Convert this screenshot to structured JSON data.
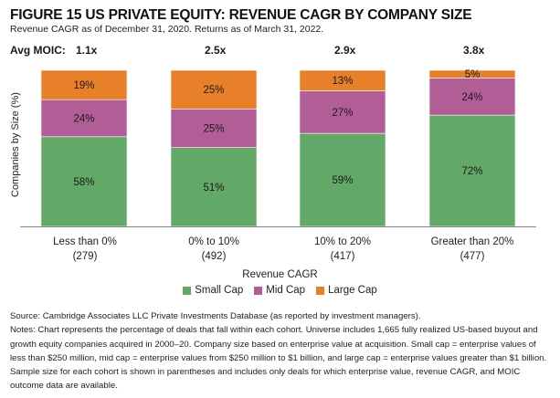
{
  "header": {
    "title": "FIGURE 15 US PRIVATE EQUITY: REVENUE CAGR BY COMPANY SIZE",
    "subtitle": "Revenue CAGR as of December 31, 2020. Returns as of March 31, 2022."
  },
  "moic": {
    "label": "Avg MOIC:",
    "values": [
      "1.1x",
      "2.5x",
      "2.9x",
      "3.8x"
    ]
  },
  "chart_data": {
    "type": "bar",
    "stacked": true,
    "title": "US Private Equity: Revenue CAGR by Company Size",
    "xlabel": "Revenue CAGR",
    "ylabel": "Companies by Size (%)",
    "ylim": [
      0,
      100
    ],
    "grid": false,
    "legend_position": "bottom",
    "categories": [
      "Less than 0%",
      "0% to 10%",
      "10% to 20%",
      "Greater than 20%"
    ],
    "sample_sizes": [
      "(279)",
      "(492)",
      "(417)",
      "(477)"
    ],
    "series": [
      {
        "name": "Small Cap",
        "color": "#62a866",
        "values": [
          58,
          51,
          59,
          72
        ]
      },
      {
        "name": "Mid Cap",
        "color": "#b25e96",
        "values": [
          24,
          25,
          27,
          24
        ]
      },
      {
        "name": "Large Cap",
        "color": "#e8802a",
        "values": [
          19,
          25,
          13,
          5
        ]
      }
    ],
    "data_label_suffix": "%"
  },
  "footer": {
    "source": "Source: Cambridge Associates LLC Private Investments Database (as reported by investment managers).",
    "notes": "Notes: Chart represents the percentage of deals that fall within each cohort. Universe includes 1,665 fully realized US-based buyout and growth equity companies acquired in 2000–20. Company size based on enterprise value at acquisition. Small cap = enterprise values of less than $250 million, mid cap = enterprise values from $250 million to $1 billion, and large cap = enterprise values greater than $1 billion. Sample size for each cohort is shown in parentheses and includes only deals for which enterprise value, revenue CAGR, and MOIC outcome data are available."
  }
}
